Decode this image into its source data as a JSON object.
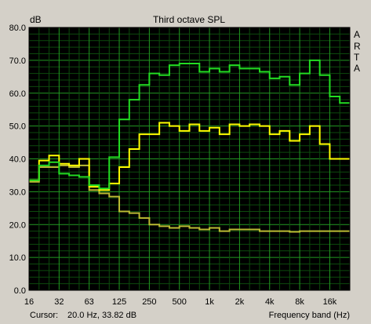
{
  "chart_data": {
    "type": "line",
    "title": "Third octave SPL",
    "ylabel": "dB",
    "xlabel": "Frequency band (Hz)",
    "ylim": [
      0,
      80
    ],
    "yticks": [
      "0.0",
      "10.0",
      "20.0",
      "30.0",
      "40.0",
      "50.0",
      "60.0",
      "70.0",
      "80.0"
    ],
    "xtick_labels": [
      "16",
      "32",
      "63",
      "125",
      "250",
      "500",
      "1k",
      "2k",
      "4k",
      "8k",
      "16k"
    ],
    "bands": [
      "16",
      "20",
      "25",
      "31.5",
      "40",
      "50",
      "63",
      "80",
      "100",
      "125",
      "160",
      "200",
      "250",
      "315",
      "400",
      "500",
      "630",
      "800",
      "1k",
      "1.25k",
      "1.6k",
      "2k",
      "2.5k",
      "3.15k",
      "4k",
      "5k",
      "6.3k",
      "8k",
      "10k",
      "12.5k",
      "16k",
      "20k"
    ],
    "grid": true,
    "side_letters": [
      "R",
      "T",
      "A"
    ],
    "side_letter_title": "A",
    "cursor_label": "Cursor:",
    "cursor_value": "20.0 Hz, 33.82 dB",
    "series": [
      {
        "color": "#22dd22",
        "values": [
          33.5,
          38.0,
          39.0,
          35.5,
          35.0,
          34.5,
          32.0,
          31.0,
          40.5,
          52.0,
          58.0,
          62.5,
          66.0,
          65.5,
          68.5,
          69.0,
          69.0,
          66.5,
          67.5,
          66.5,
          68.5,
          67.5,
          67.5,
          66.5,
          64.5,
          65.0,
          62.5,
          66.0,
          70.0,
          65.5,
          59.0,
          57.0
        ]
      },
      {
        "color": "#ffff00",
        "values": [
          33.5,
          39.5,
          41.0,
          38.5,
          38.0,
          40.0,
          31.5,
          30.5,
          32.5,
          37.5,
          43.0,
          47.5,
          47.5,
          51.0,
          50.0,
          48.5,
          50.5,
          48.5,
          49.5,
          47.5,
          50.5,
          50.0,
          50.5,
          50.0,
          47.5,
          48.5,
          45.5,
          47.5,
          50.0,
          44.5,
          40.0,
          40.0
        ]
      },
      {
        "color": "#bbbb33",
        "values": [
          33.0,
          37.5,
          37.5,
          38.0,
          37.5,
          38.0,
          30.5,
          29.5,
          28.5,
          24.0,
          23.5,
          22.0,
          20.0,
          19.5,
          19.0,
          19.5,
          19.0,
          18.5,
          19.0,
          18.0,
          18.5,
          18.5,
          18.5,
          18.0,
          18.0,
          18.0,
          17.8,
          18.0,
          18.0,
          18.0,
          18.0,
          18.0
        ]
      }
    ]
  }
}
